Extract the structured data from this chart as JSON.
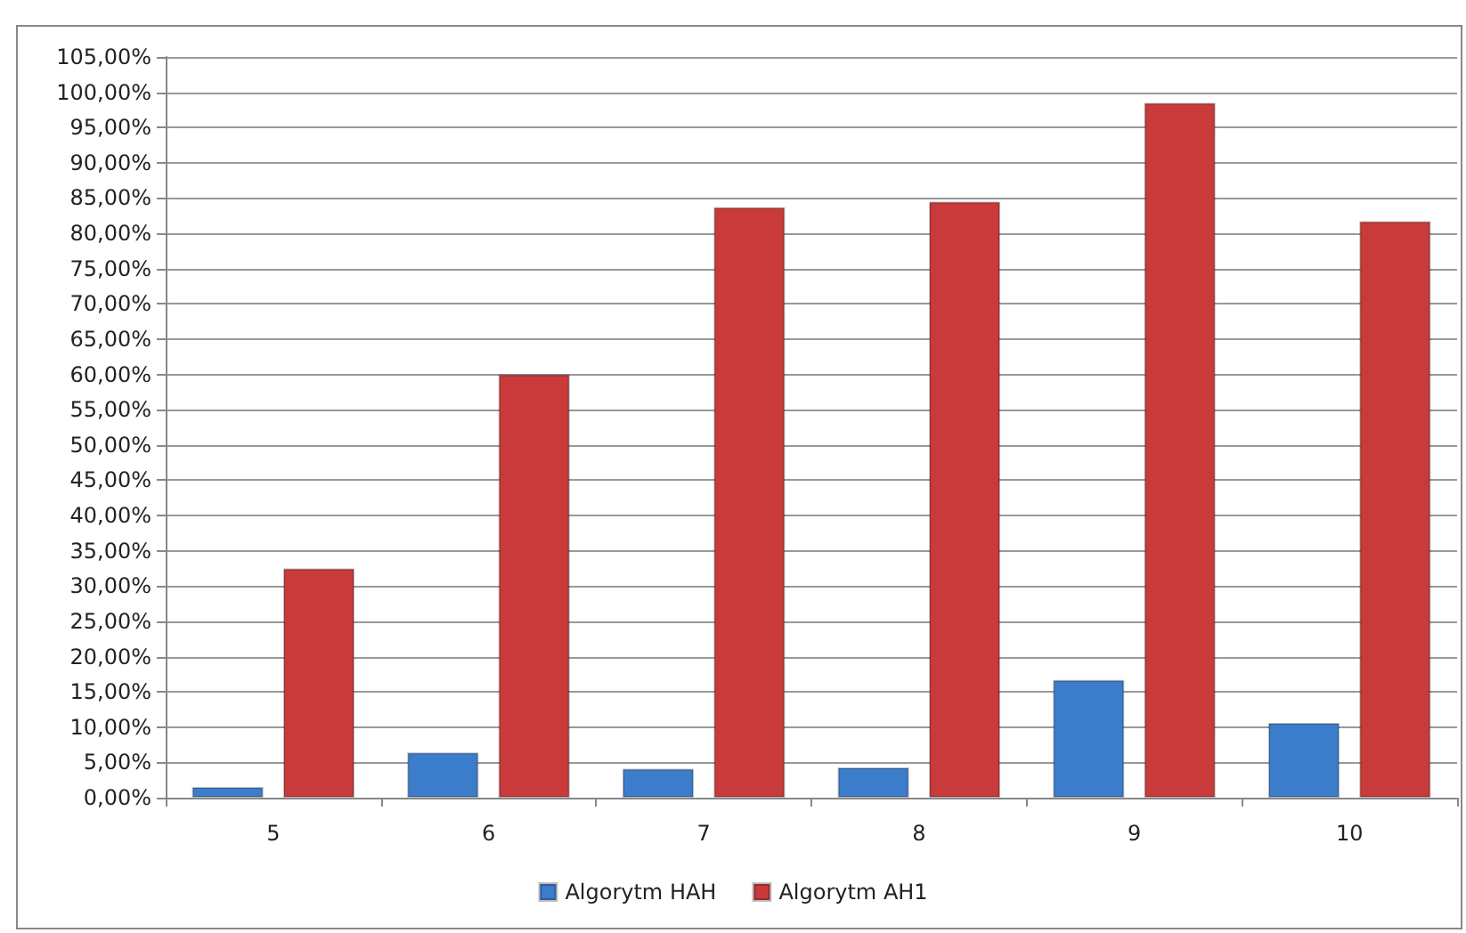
{
  "chart_data": {
    "type": "bar",
    "categories": [
      "5",
      "6",
      "7",
      "8",
      "9",
      "10"
    ],
    "series": [
      {
        "name": "Algorytm HAH",
        "color": "#3c7dcb",
        "values": [
          1.5,
          6.4,
          4.1,
          4.3,
          16.7,
          10.6
        ]
      },
      {
        "name": "Algorytm AH1",
        "color": "#c93a3a",
        "values": [
          32.5,
          60,
          83.7,
          84.5,
          98.5,
          81.7
        ]
      }
    ],
    "ylim": [
      0,
      105
    ],
    "yticks": [
      {
        "value": 0,
        "label": "0,00%"
      },
      {
        "value": 5,
        "label": "5,00%"
      },
      {
        "value": 10,
        "label": "10,00%"
      },
      {
        "value": 15,
        "label": "15,00%"
      },
      {
        "value": 20,
        "label": "20,00%"
      },
      {
        "value": 25,
        "label": "25,00%"
      },
      {
        "value": 30,
        "label": "30,00%"
      },
      {
        "value": 35,
        "label": "35,00%"
      },
      {
        "value": 40,
        "label": "40,00%"
      },
      {
        "value": 45,
        "label": "45,00%"
      },
      {
        "value": 50,
        "label": "50,00%"
      },
      {
        "value": 55,
        "label": "55,00%"
      },
      {
        "value": 60,
        "label": "60,00%"
      },
      {
        "value": 65,
        "label": "65,00%"
      },
      {
        "value": 70,
        "label": "70,00%"
      },
      {
        "value": 75,
        "label": "75,00%"
      },
      {
        "value": 80,
        "label": "80,00%"
      },
      {
        "value": 85,
        "label": "85,00%"
      },
      {
        "value": 90,
        "label": "90,00%"
      },
      {
        "value": 95,
        "label": "95,00%"
      },
      {
        "value": 100,
        "label": "100,00%"
      },
      {
        "value": 105,
        "label": "105,00%"
      }
    ],
    "grid": "y",
    "legend": "bottom"
  }
}
